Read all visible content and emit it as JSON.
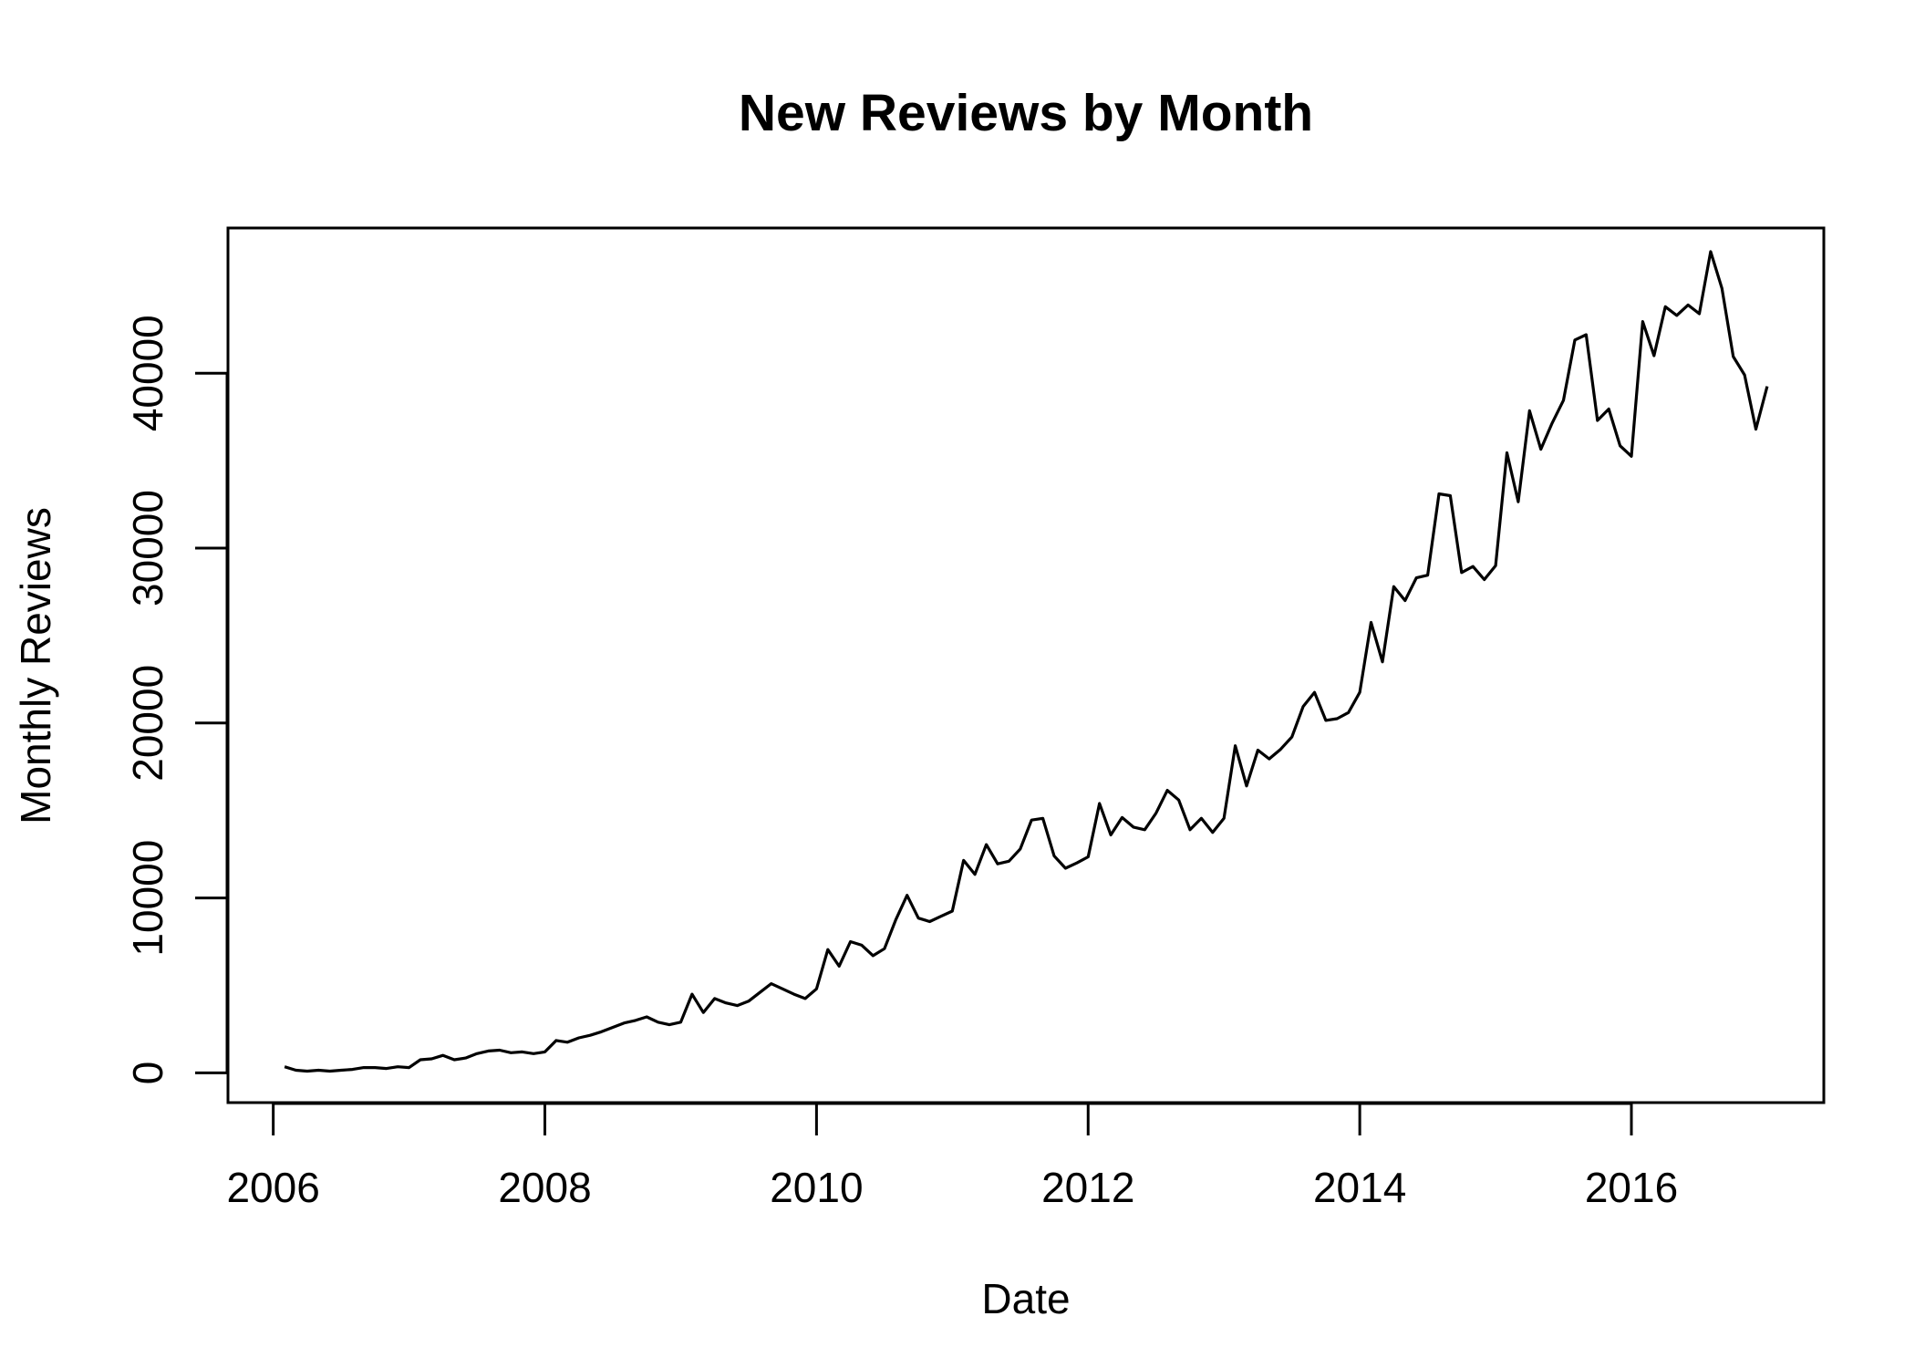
{
  "chart_data": {
    "type": "line",
    "title": "New Reviews by Month",
    "xlabel": "Date",
    "ylabel": "Monthly Reviews",
    "xlim": [
      "2005-09-01",
      "2017-06-01"
    ],
    "ylim": [
      -1700,
      48300
    ],
    "x_ticks": [
      {
        "value": "2006-01-01",
        "label": "2006"
      },
      {
        "value": "2008-01-01",
        "label": "2008"
      },
      {
        "value": "2010-01-01",
        "label": "2010"
      },
      {
        "value": "2012-01-01",
        "label": "2012"
      },
      {
        "value": "2014-01-01",
        "label": "2014"
      },
      {
        "value": "2016-01-01",
        "label": "2016"
      }
    ],
    "y_ticks": [
      {
        "value": 0,
        "label": "0"
      },
      {
        "value": 10000,
        "label": "10000"
      },
      {
        "value": 20000,
        "label": "20000"
      },
      {
        "value": 30000,
        "label": "30000"
      },
      {
        "value": 40000,
        "label": "40000"
      }
    ],
    "grid": false,
    "color": "#000000",
    "series": [
      {
        "x": [
          "2006-02",
          "2006-03",
          "2006-04",
          "2006-05",
          "2006-06",
          "2006-07",
          "2006-08",
          "2006-09",
          "2006-10",
          "2006-11",
          "2006-12",
          "2007-01",
          "2007-02",
          "2007-03",
          "2007-04",
          "2007-05",
          "2007-06",
          "2007-07",
          "2007-08",
          "2007-09",
          "2007-10",
          "2007-11",
          "2007-12",
          "2008-01",
          "2008-02",
          "2008-03",
          "2008-04",
          "2008-05",
          "2008-06",
          "2008-07",
          "2008-08",
          "2008-09",
          "2008-10",
          "2008-11",
          "2008-12",
          "2009-01",
          "2009-02",
          "2009-03",
          "2009-04",
          "2009-05",
          "2009-06",
          "2009-07",
          "2009-08",
          "2009-09",
          "2009-10",
          "2009-11",
          "2009-12",
          "2010-01",
          "2010-02",
          "2010-03",
          "2010-04",
          "2010-05",
          "2010-06",
          "2010-07",
          "2010-08",
          "2010-09",
          "2010-10",
          "2010-11",
          "2010-12",
          "2011-01",
          "2011-02",
          "2011-03",
          "2011-04",
          "2011-05",
          "2011-06",
          "2011-07",
          "2011-08",
          "2011-09",
          "2011-10",
          "2011-11",
          "2011-12",
          "2012-01",
          "2012-02",
          "2012-03",
          "2012-04",
          "2012-05",
          "2012-06",
          "2012-07",
          "2012-08",
          "2012-09",
          "2012-10",
          "2012-11",
          "2012-12",
          "2013-01",
          "2013-02",
          "2013-03",
          "2013-04",
          "2013-05",
          "2013-06",
          "2013-07",
          "2013-08",
          "2013-09",
          "2013-10",
          "2013-11",
          "2013-12",
          "2014-01",
          "2014-02",
          "2014-03",
          "2014-04",
          "2014-05",
          "2014-06",
          "2014-07",
          "2014-08",
          "2014-09",
          "2014-10",
          "2014-11",
          "2014-12",
          "2015-01",
          "2015-02",
          "2015-03",
          "2015-04",
          "2015-05",
          "2015-06",
          "2015-07",
          "2015-08",
          "2015-09",
          "2015-10",
          "2015-11",
          "2015-12",
          "2016-01",
          "2016-02",
          "2016-03",
          "2016-04",
          "2016-05",
          "2016-06",
          "2016-07",
          "2016-08",
          "2016-09",
          "2016-10",
          "2016-11",
          "2016-12",
          "2017-01"
        ],
        "y": [
          350,
          150,
          100,
          150,
          100,
          150,
          200,
          300,
          300,
          250,
          350,
          300,
          750,
          800,
          1000,
          750,
          850,
          1100,
          1250,
          1300,
          1150,
          1200,
          1100,
          1200,
          1850,
          1750,
          2000,
          2150,
          2350,
          2600,
          2850,
          3000,
          3200,
          2900,
          2750,
          2900,
          4500,
          3450,
          4250,
          4000,
          3850,
          4100,
          4600,
          5100,
          4800,
          4500,
          4250,
          4800,
          7050,
          6100,
          7500,
          7300,
          6700,
          7100,
          8750,
          10150,
          8850,
          8650,
          8950,
          9250,
          12150,
          11350,
          13050,
          11950,
          12100,
          12800,
          14450,
          14550,
          12400,
          11700,
          12000,
          12350,
          15400,
          13600,
          14600,
          14050,
          13900,
          14850,
          16150,
          15600,
          13900,
          14550,
          13750,
          14550,
          18700,
          16400,
          18450,
          17950,
          18500,
          19200,
          20950,
          21750,
          20150,
          20250,
          20600,
          21750,
          25750,
          23500,
          27800,
          27000,
          28300,
          28450,
          33100,
          33000,
          28600,
          28950,
          28200,
          29000,
          35450,
          32650,
          37850,
          35650,
          37150,
          38450,
          41900,
          42200,
          37300,
          37950,
          35850,
          35250,
          42950,
          41000,
          43800,
          43300,
          43900,
          43400,
          46950,
          44850,
          40950,
          39900,
          36800,
          39250
        ]
      }
    ]
  }
}
